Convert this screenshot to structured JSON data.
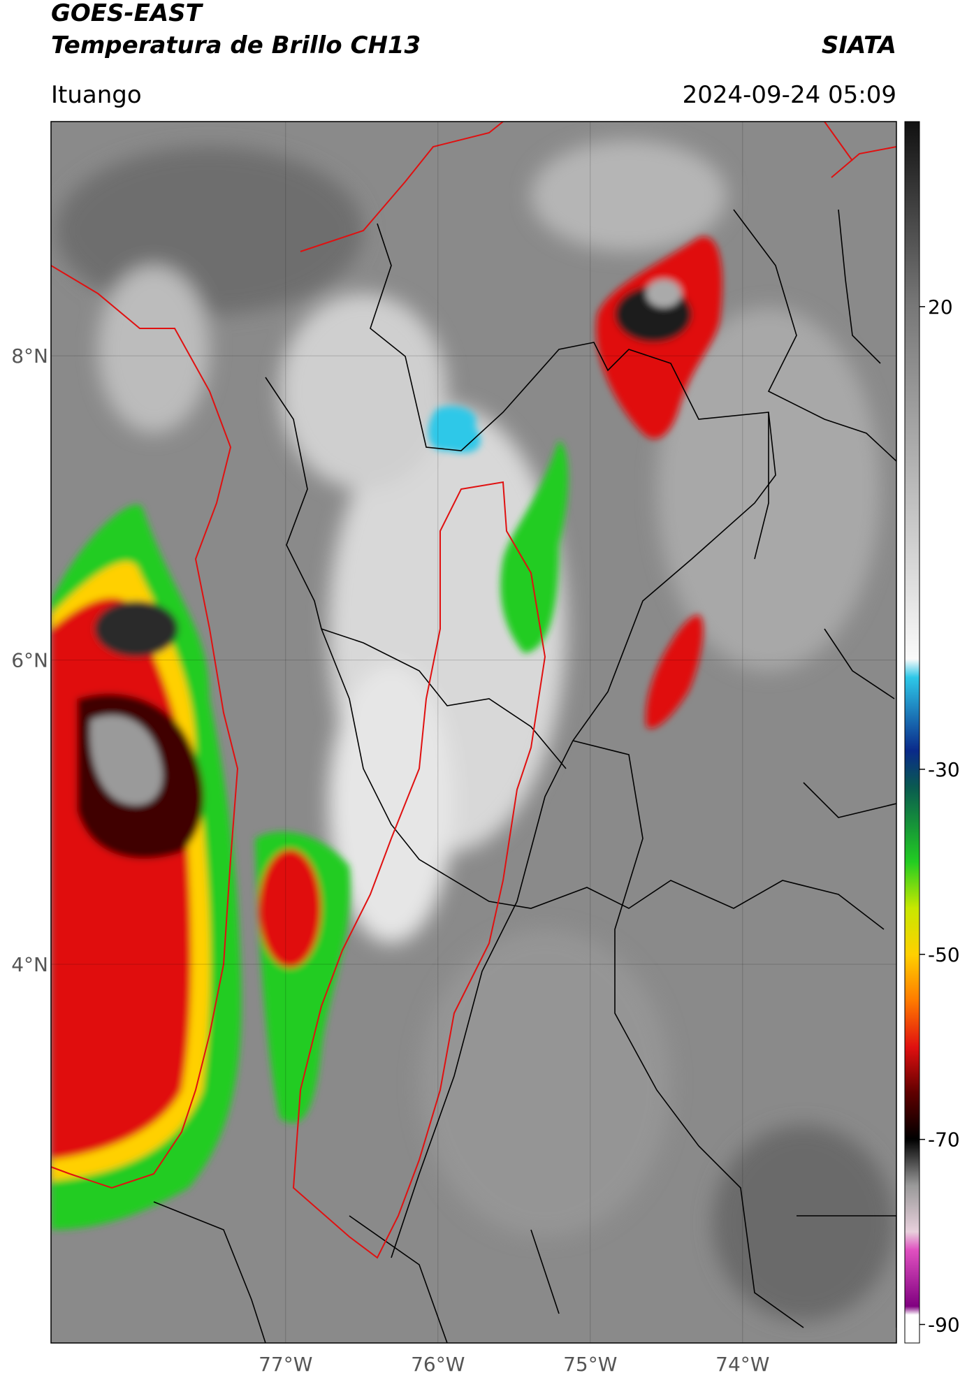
{
  "header": {
    "title": "GOES-EAST",
    "subtitle": "Temperatura de Brillo CH13",
    "brand": "SIATA",
    "location": "Ituango",
    "datetime": "2024-09-24 05:09"
  },
  "map": {
    "lonlim": [
      -78.54,
      -72.99
    ],
    "latlim": [
      1.51,
      9.54
    ],
    "lon_ticks": [
      {
        "value": -77,
        "label": "77°W"
      },
      {
        "value": -76,
        "label": "76°W"
      },
      {
        "value": -75,
        "label": "75°W"
      },
      {
        "value": -74,
        "label": "74°W"
      }
    ],
    "lat_ticks": [
      {
        "value": 8,
        "label": "8°N"
      },
      {
        "value": 6,
        "label": "6°N"
      },
      {
        "value": 4,
        "label": "4°N"
      }
    ]
  },
  "colorbar": {
    "lim": [
      -92,
      40
    ],
    "ticks": [
      20,
      -30,
      -50,
      -70,
      -90
    ]
  }
}
